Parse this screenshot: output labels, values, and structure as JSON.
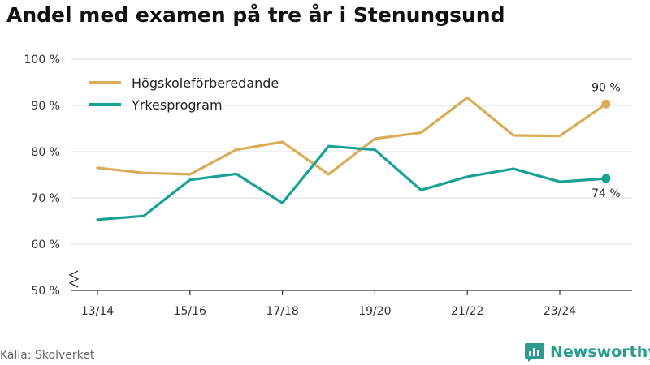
{
  "title": "Andel med examen på tre år i Stenungsund",
  "source": "Källa: Skolverket",
  "brand": "Newsworthy",
  "colors": {
    "series_0": "#d9ac57",
    "series_1": "#17a294",
    "grid": "#dddddd",
    "axis": "#333333",
    "brand": "#2a9d8f"
  },
  "chart_data": {
    "type": "line",
    "title": "Andel med examen på tre år i Stenungsund",
    "xlabel": "",
    "ylabel": "",
    "x": [
      "13/14",
      "14/15",
      "15/16",
      "16/17",
      "17/18",
      "18/19",
      "19/20",
      "20/21",
      "21/22",
      "22/23",
      "23/24",
      "24/25"
    ],
    "x_tick_labels": [
      "13/14",
      "15/16",
      "17/18",
      "19/20",
      "21/22",
      "23/24"
    ],
    "ylim": [
      50,
      100
    ],
    "y_ticks": [
      50,
      60,
      70,
      80,
      90,
      100
    ],
    "y_tick_labels": [
      "50 %",
      "60 %",
      "70 %",
      "80 %",
      "90 %",
      "100 %"
    ],
    "grid": true,
    "legend_position": "top-left",
    "series": [
      {
        "name": "Högskoleförberedande",
        "values": [
          76.5,
          75.4,
          75.1,
          80.4,
          82.1,
          75.1,
          82.8,
          84.1,
          91.7,
          83.5,
          83.4,
          90.3
        ],
        "end_label": "90 %"
      },
      {
        "name": "Yrkesprogram",
        "values": [
          65.3,
          66.1,
          73.9,
          75.2,
          68.9,
          81.2,
          80.4,
          71.7,
          74.6,
          76.3,
          73.5,
          74.2
        ],
        "end_label": "74 %"
      }
    ]
  }
}
